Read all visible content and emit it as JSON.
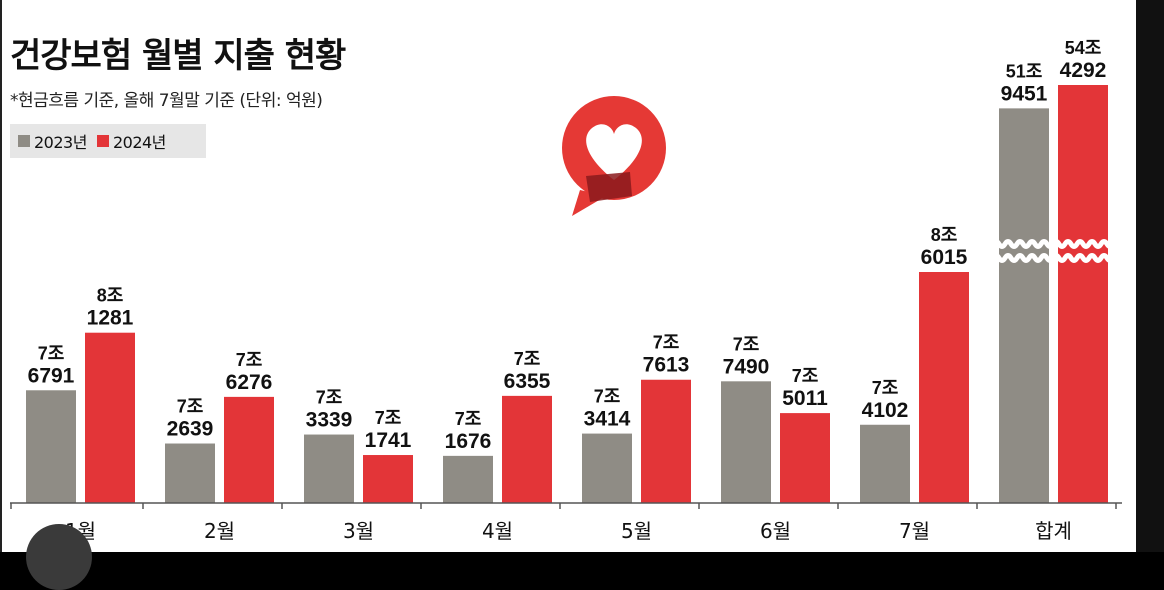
{
  "header": {
    "title": "건강보험 월별 지출 현황",
    "subtitle": "*현금흐름 기준, 올해 7월말 기준 (단위: 억원)"
  },
  "logo": {
    "icon": "heart-speech-bubble-icon",
    "color": "#e53935"
  },
  "colors": {
    "series_2023": "#8f8c85",
    "series_2024": "#e33538",
    "background": "#ffffff"
  },
  "chart_data": {
    "type": "bar",
    "title": "건강보험 월별 지출 현황",
    "subtitle": "*현금흐름 기준, 올해 7월말 기준 (단위: 억원)",
    "unit": "억원",
    "categories": [
      "1월",
      "2월",
      "3월",
      "4월",
      "5월",
      "6월",
      "7월",
      "합계"
    ],
    "series": [
      {
        "name": "2023년",
        "color": "#8f8c85",
        "values": [
          76791,
          72639,
          73339,
          71676,
          73414,
          77490,
          74102,
          519451
        ],
        "labels": [
          [
            "7조",
            "6791"
          ],
          [
            "7조",
            "2639"
          ],
          [
            "7조",
            "3339"
          ],
          [
            "7조",
            "1676"
          ],
          [
            "7조",
            "3414"
          ],
          [
            "7조",
            "7490"
          ],
          [
            "7조",
            "4102"
          ],
          [
            "51조",
            "9451"
          ]
        ]
      },
      {
        "name": "2024년",
        "color": "#e33538",
        "values": [
          81281,
          76276,
          71741,
          76355,
          77613,
          75011,
          86015,
          544292
        ],
        "labels": [
          [
            "8조",
            "1281"
          ],
          [
            "7조",
            "6276"
          ],
          [
            "7조",
            "1741"
          ],
          [
            "7조",
            "6355"
          ],
          [
            "7조",
            "7613"
          ],
          [
            "7조",
            "5011"
          ],
          [
            "8조",
            "6015"
          ],
          [
            "54조",
            "4292"
          ]
        ]
      }
    ],
    "axis_break_on": "합계",
    "legend_position": "top-left",
    "grid": false
  }
}
